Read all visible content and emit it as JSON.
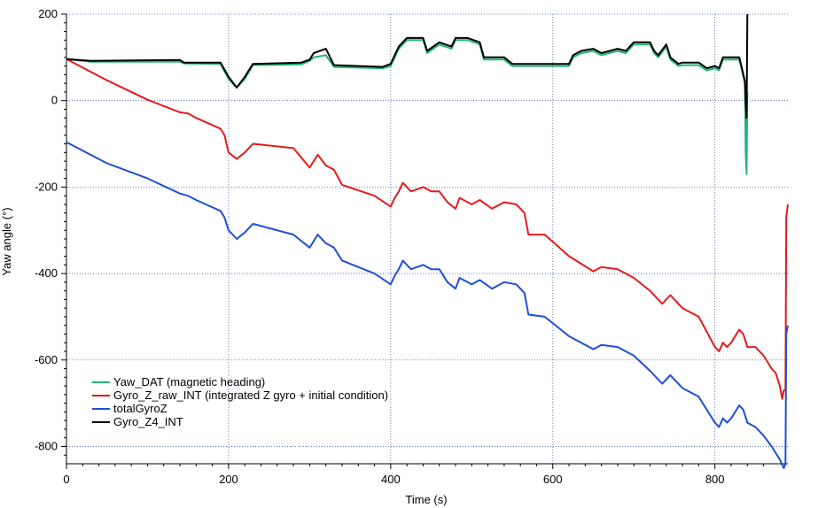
{
  "chart_data": {
    "type": "line",
    "title": "",
    "xlabel": "Time (s)",
    "ylabel": "Yaw angle (°)",
    "xlim": [
      0,
      840
    ],
    "ylim": [
      -840,
      200
    ],
    "x_ticks": [
      0,
      200,
      400,
      600,
      800
    ],
    "y_ticks": [
      200,
      0,
      -200,
      -400,
      -600,
      -800
    ],
    "x_tick_labels": [
      "0",
      "200",
      "400",
      "600",
      "800"
    ],
    "y_tick_labels": [
      "200",
      "0",
      "-200",
      "-400",
      "-600",
      "-800"
    ],
    "grid": true,
    "legend_position": "bottom-left",
    "series": [
      {
        "name": "Yaw_DAT (magnetic heading)",
        "color": "#21b573",
        "points": [
          [
            0,
            96
          ],
          [
            30,
            90
          ],
          [
            140,
            90
          ],
          [
            145,
            86
          ],
          [
            190,
            85
          ],
          [
            200,
            50
          ],
          [
            210,
            30
          ],
          [
            220,
            50
          ],
          [
            230,
            82
          ],
          [
            290,
            84
          ],
          [
            300,
            92
          ],
          [
            305,
            100
          ],
          [
            320,
            105
          ],
          [
            330,
            78
          ],
          [
            390,
            75
          ],
          [
            400,
            80
          ],
          [
            410,
            120
          ],
          [
            420,
            140
          ],
          [
            440,
            140
          ],
          [
            445,
            110
          ],
          [
            460,
            130
          ],
          [
            475,
            120
          ],
          [
            480,
            140
          ],
          [
            495,
            140
          ],
          [
            510,
            130
          ],
          [
            515,
            95
          ],
          [
            540,
            95
          ],
          [
            550,
            80
          ],
          [
            590,
            80
          ],
          [
            620,
            80
          ],
          [
            625,
            100
          ],
          [
            635,
            110
          ],
          [
            650,
            115
          ],
          [
            660,
            105
          ],
          [
            680,
            115
          ],
          [
            690,
            110
          ],
          [
            695,
            120
          ],
          [
            700,
            130
          ],
          [
            720,
            130
          ],
          [
            725,
            110
          ],
          [
            730,
            100
          ],
          [
            740,
            125
          ],
          [
            745,
            95
          ],
          [
            755,
            80
          ],
          [
            760,
            82
          ],
          [
            780,
            82
          ],
          [
            790,
            70
          ],
          [
            800,
            75
          ],
          [
            805,
            70
          ],
          [
            810,
            95
          ],
          [
            830,
            95
          ],
          [
            832,
            80
          ],
          [
            837,
            40
          ],
          [
            838,
            -120
          ],
          [
            839,
            -170
          ],
          [
            840,
            20
          ]
        ]
      },
      {
        "name": "Gyro_Z_raw_INT (integrated Z gyro + initial condition)",
        "color": "#e41a1c",
        "points": [
          [
            0,
            96
          ],
          [
            50,
            47
          ],
          [
            100,
            2
          ],
          [
            140,
            -27
          ],
          [
            150,
            -30
          ],
          [
            160,
            -40
          ],
          [
            190,
            -65
          ],
          [
            195,
            -80
          ],
          [
            200,
            -120
          ],
          [
            210,
            -135
          ],
          [
            220,
            -120
          ],
          [
            230,
            -100
          ],
          [
            280,
            -110
          ],
          [
            300,
            -155
          ],
          [
            310,
            -125
          ],
          [
            320,
            -150
          ],
          [
            330,
            -160
          ],
          [
            340,
            -195
          ],
          [
            380,
            -220
          ],
          [
            400,
            -245
          ],
          [
            405,
            -225
          ],
          [
            410,
            -210
          ],
          [
            415,
            -190
          ],
          [
            420,
            -200
          ],
          [
            425,
            -210
          ],
          [
            440,
            -200
          ],
          [
            450,
            -210
          ],
          [
            460,
            -210
          ],
          [
            470,
            -235
          ],
          [
            480,
            -250
          ],
          [
            485,
            -225
          ],
          [
            500,
            -240
          ],
          [
            510,
            -230
          ],
          [
            525,
            -250
          ],
          [
            540,
            -235
          ],
          [
            555,
            -240
          ],
          [
            565,
            -260
          ],
          [
            570,
            -310
          ],
          [
            590,
            -310
          ],
          [
            620,
            -360
          ],
          [
            650,
            -395
          ],
          [
            660,
            -385
          ],
          [
            680,
            -390
          ],
          [
            690,
            -400
          ],
          [
            700,
            -410
          ],
          [
            720,
            -440
          ],
          [
            735,
            -470
          ],
          [
            745,
            -450
          ],
          [
            760,
            -480
          ],
          [
            780,
            -500
          ],
          [
            800,
            -570
          ],
          [
            805,
            -580
          ],
          [
            810,
            -560
          ],
          [
            815,
            -570
          ],
          [
            820,
            -560
          ],
          [
            830,
            -530
          ],
          [
            835,
            -540
          ],
          [
            840,
            -570
          ],
          [
            850,
            -570
          ],
          [
            860,
            -590
          ],
          [
            870,
            -620
          ],
          [
            875,
            -630
          ],
          [
            880,
            -660
          ],
          [
            883,
            -690
          ],
          [
            885,
            -670
          ],
          [
            887,
            -670
          ],
          [
            888,
            -270
          ],
          [
            890,
            -240
          ]
        ]
      },
      {
        "name": "totalGyroZ",
        "color": "#1e4fd8",
        "points": [
          [
            0,
            -96
          ],
          [
            50,
            -145
          ],
          [
            100,
            -180
          ],
          [
            140,
            -215
          ],
          [
            150,
            -220
          ],
          [
            160,
            -230
          ],
          [
            190,
            -255
          ],
          [
            195,
            -270
          ],
          [
            200,
            -300
          ],
          [
            210,
            -320
          ],
          [
            220,
            -305
          ],
          [
            230,
            -285
          ],
          [
            280,
            -310
          ],
          [
            300,
            -340
          ],
          [
            310,
            -310
          ],
          [
            320,
            -330
          ],
          [
            330,
            -340
          ],
          [
            340,
            -370
          ],
          [
            380,
            -400
          ],
          [
            400,
            -425
          ],
          [
            405,
            -405
          ],
          [
            410,
            -390
          ],
          [
            415,
            -370
          ],
          [
            420,
            -380
          ],
          [
            425,
            -390
          ],
          [
            440,
            -380
          ],
          [
            450,
            -390
          ],
          [
            460,
            -390
          ],
          [
            470,
            -420
          ],
          [
            480,
            -435
          ],
          [
            485,
            -410
          ],
          [
            500,
            -425
          ],
          [
            510,
            -415
          ],
          [
            525,
            -435
          ],
          [
            540,
            -420
          ],
          [
            555,
            -425
          ],
          [
            565,
            -445
          ],
          [
            570,
            -495
          ],
          [
            590,
            -500
          ],
          [
            620,
            -545
          ],
          [
            650,
            -575
          ],
          [
            660,
            -565
          ],
          [
            680,
            -570
          ],
          [
            690,
            -580
          ],
          [
            700,
            -590
          ],
          [
            720,
            -625
          ],
          [
            735,
            -655
          ],
          [
            745,
            -635
          ],
          [
            760,
            -665
          ],
          [
            780,
            -685
          ],
          [
            800,
            -745
          ],
          [
            805,
            -755
          ],
          [
            810,
            -735
          ],
          [
            815,
            -745
          ],
          [
            820,
            -735
          ],
          [
            830,
            -705
          ],
          [
            835,
            -715
          ],
          [
            840,
            -745
          ],
          [
            850,
            -755
          ],
          [
            860,
            -775
          ],
          [
            870,
            -800
          ],
          [
            875,
            -815
          ],
          [
            880,
            -830
          ],
          [
            885,
            -850
          ],
          [
            887,
            -840
          ],
          [
            888,
            -540
          ],
          [
            890,
            -520
          ]
        ]
      },
      {
        "name": "Gyro_Z4_INT",
        "color": "#000000",
        "points": [
          [
            0,
            96
          ],
          [
            30,
            92
          ],
          [
            140,
            94
          ],
          [
            145,
            88
          ],
          [
            190,
            88
          ],
          [
            200,
            55
          ],
          [
            210,
            30
          ],
          [
            220,
            55
          ],
          [
            230,
            85
          ],
          [
            290,
            88
          ],
          [
            300,
            95
          ],
          [
            305,
            110
          ],
          [
            320,
            120
          ],
          [
            330,
            82
          ],
          [
            390,
            78
          ],
          [
            400,
            85
          ],
          [
            410,
            125
          ],
          [
            420,
            145
          ],
          [
            440,
            145
          ],
          [
            445,
            115
          ],
          [
            460,
            135
          ],
          [
            475,
            125
          ],
          [
            480,
            145
          ],
          [
            495,
            145
          ],
          [
            510,
            135
          ],
          [
            515,
            100
          ],
          [
            540,
            100
          ],
          [
            550,
            85
          ],
          [
            590,
            85
          ],
          [
            620,
            85
          ],
          [
            625,
            105
          ],
          [
            635,
            115
          ],
          [
            650,
            120
          ],
          [
            660,
            110
          ],
          [
            680,
            120
          ],
          [
            690,
            115
          ],
          [
            695,
            125
          ],
          [
            700,
            135
          ],
          [
            720,
            135
          ],
          [
            725,
            115
          ],
          [
            730,
            105
          ],
          [
            740,
            130
          ],
          [
            745,
            100
          ],
          [
            755,
            85
          ],
          [
            760,
            88
          ],
          [
            780,
            88
          ],
          [
            790,
            75
          ],
          [
            800,
            80
          ],
          [
            805,
            75
          ],
          [
            810,
            100
          ],
          [
            830,
            100
          ],
          [
            832,
            85
          ],
          [
            837,
            45
          ],
          [
            838,
            -5
          ],
          [
            839,
            -40
          ],
          [
            840,
            200
          ]
        ]
      }
    ]
  }
}
